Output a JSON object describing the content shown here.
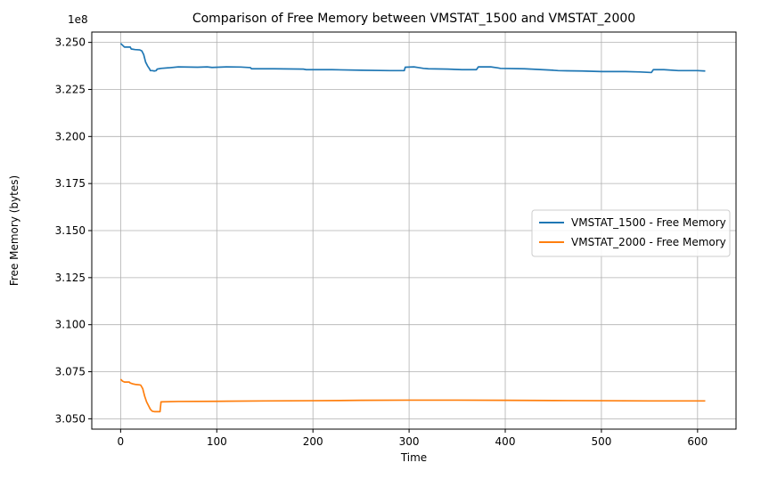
{
  "chart_data": {
    "type": "line",
    "title": "Comparison of Free Memory between VMSTAT_1500 and VMSTAT_2000",
    "xlabel": "Time",
    "ylabel": "Free Memory (bytes)",
    "y_offset_label": "1e8",
    "xlim": [
      -30,
      640
    ],
    "ylim": [
      3.0445,
      3.2555
    ],
    "x_ticks": [
      0,
      100,
      200,
      300,
      400,
      500,
      600
    ],
    "x_tick_labels": [
      "0",
      "100",
      "200",
      "300",
      "400",
      "500",
      "600"
    ],
    "y_ticks": [
      3.05,
      3.075,
      3.1,
      3.125,
      3.15,
      3.175,
      3.2,
      3.225,
      3.25
    ],
    "y_tick_labels": [
      "3.050",
      "3.075",
      "3.100",
      "3.125",
      "3.150",
      "3.175",
      "3.200",
      "3.225",
      "3.250"
    ],
    "grid": true,
    "legend_position": "center-right",
    "series": [
      {
        "name": "VMSTAT_1500 - Free Memory",
        "color": "#1f77b4",
        "points": [
          [
            0,
            3.2495
          ],
          [
            2,
            3.2485
          ],
          [
            4,
            3.2475
          ],
          [
            10,
            3.2475
          ],
          [
            11,
            3.2465
          ],
          [
            15,
            3.2462
          ],
          [
            20,
            3.246
          ],
          [
            22,
            3.2455
          ],
          [
            24,
            3.2435
          ],
          [
            26,
            3.2395
          ],
          [
            28,
            3.2375
          ],
          [
            30,
            3.236
          ],
          [
            31,
            3.235
          ],
          [
            33,
            3.235
          ],
          [
            35,
            3.2348
          ],
          [
            37,
            3.235
          ],
          [
            38,
            3.2358
          ],
          [
            42,
            3.2362
          ],
          [
            50,
            3.2365
          ],
          [
            60,
            3.237
          ],
          [
            80,
            3.2368
          ],
          [
            90,
            3.237
          ],
          [
            95,
            3.2367
          ],
          [
            110,
            3.237
          ],
          [
            125,
            3.2369
          ],
          [
            135,
            3.2366
          ],
          [
            136,
            3.236
          ],
          [
            160,
            3.236
          ],
          [
            190,
            3.2358
          ],
          [
            193,
            3.2355
          ],
          [
            220,
            3.2355
          ],
          [
            250,
            3.2352
          ],
          [
            280,
            3.235
          ],
          [
            295,
            3.235
          ],
          [
            296,
            3.2368
          ],
          [
            305,
            3.237
          ],
          [
            310,
            3.2366
          ],
          [
            315,
            3.2362
          ],
          [
            320,
            3.236
          ],
          [
            340,
            3.2358
          ],
          [
            355,
            3.2355
          ],
          [
            370,
            3.2355
          ],
          [
            372,
            3.237
          ],
          [
            385,
            3.237
          ],
          [
            392,
            3.2365
          ],
          [
            395,
            3.2362
          ],
          [
            420,
            3.236
          ],
          [
            450,
            3.2352
          ],
          [
            455,
            3.235
          ],
          [
            480,
            3.2348
          ],
          [
            500,
            3.2345
          ],
          [
            525,
            3.2345
          ],
          [
            540,
            3.2343
          ],
          [
            552,
            3.234
          ],
          [
            554,
            3.2355
          ],
          [
            565,
            3.2355
          ],
          [
            580,
            3.235
          ],
          [
            590,
            3.235
          ],
          [
            600,
            3.235
          ],
          [
            608,
            3.2348
          ]
        ]
      },
      {
        "name": "VMSTAT_2000 - Free Memory",
        "color": "#ff7f0e",
        "points": [
          [
            0,
            3.071
          ],
          [
            2,
            3.07
          ],
          [
            4,
            3.0695
          ],
          [
            9,
            3.0695
          ],
          [
            10,
            3.069
          ],
          [
            13,
            3.0685
          ],
          [
            16,
            3.0682
          ],
          [
            20,
            3.068
          ],
          [
            21,
            3.0678
          ],
          [
            23,
            3.066
          ],
          [
            25,
            3.062
          ],
          [
            27,
            3.059
          ],
          [
            29,
            3.057
          ],
          [
            31,
            3.055
          ],
          [
            33,
            3.054
          ],
          [
            35,
            3.0538
          ],
          [
            40,
            3.0538
          ],
          [
            41,
            3.0538
          ],
          [
            42,
            3.059
          ],
          [
            60,
            3.0592
          ],
          [
            100,
            3.0593
          ],
          [
            150,
            3.0595
          ],
          [
            200,
            3.0596
          ],
          [
            250,
            3.0598
          ],
          [
            300,
            3.0599
          ],
          [
            350,
            3.0599
          ],
          [
            400,
            3.0598
          ],
          [
            450,
            3.0597
          ],
          [
            500,
            3.0596
          ],
          [
            550,
            3.0595
          ],
          [
            608,
            3.0595
          ]
        ]
      }
    ]
  }
}
